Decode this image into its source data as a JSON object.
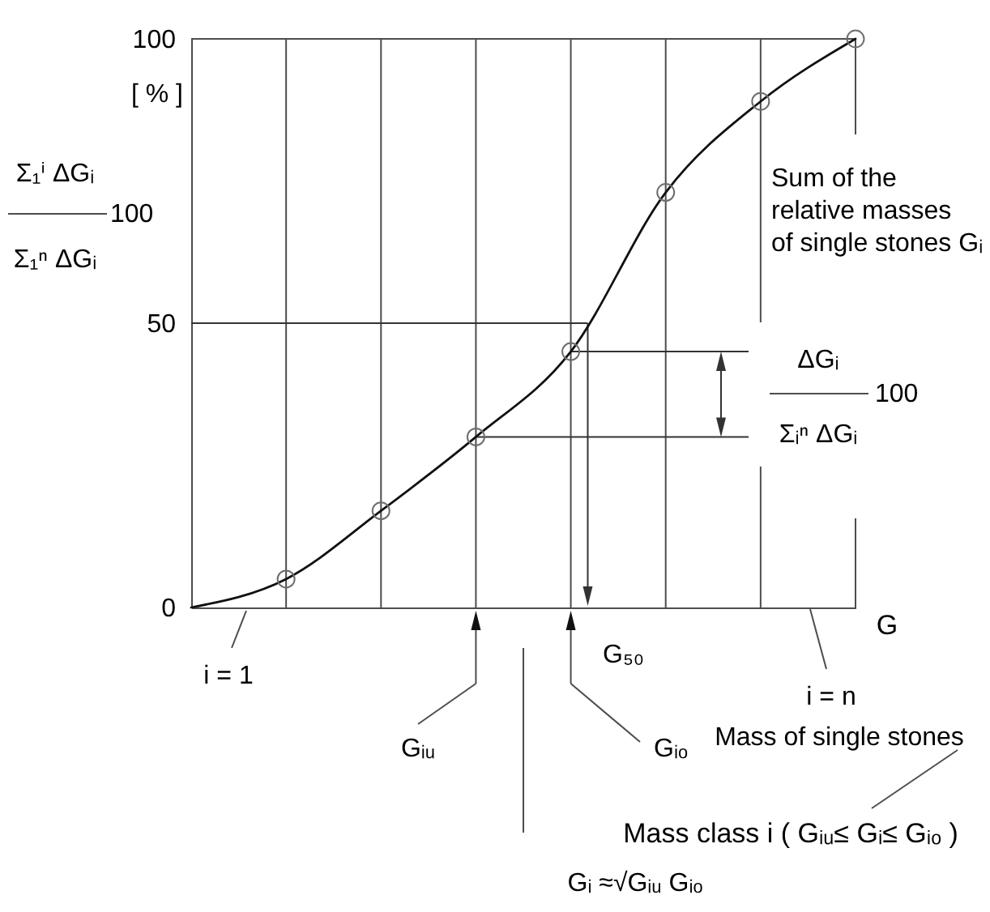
{
  "chart_data": {
    "type": "line",
    "xlabel": "G",
    "categories": [
      null,
      null,
      null,
      null,
      null,
      null,
      null,
      null
    ],
    "series": [
      {
        "type": "line",
        "color": "#111111",
        "values": [
          0,
          5,
          17,
          30,
          45,
          73,
          89,
          100
        ]
      },
      {
        "type": "scatter",
        "marker": "circle",
        "color": "#6e6e6e",
        "values": [
          null,
          5,
          17,
          30,
          45,
          73,
          89,
          100
        ]
      }
    ],
    "ylim": [
      0,
      100
    ],
    "yticks": [
      0,
      50,
      100
    ],
    "tick_labels": "y",
    "grid": "x",
    "ref_lines": [
      {
        "axis": "y",
        "value": 50,
        "color": "#333333"
      },
      {
        "axis": "y",
        "value": 45,
        "color": "#333333"
      },
      {
        "axis": "y",
        "value": 30,
        "color": "#333333"
      }
    ],
    "annotations": [
      "[ % ]",
      "Σ₁ⁱ ΔGᵢ",
      "100",
      "Σ₁ⁿ ΔGᵢ",
      "Sum of the relative masses of single stones Gᵢ",
      "ΔGᵢ",
      "100",
      "Σᵢⁿ ΔGᵢ",
      "G₅₀",
      "i = 1",
      "i = n",
      "Gᵢᵤ",
      "Gᵢₒ",
      "Gᵢ ≈√Gᵢᵤ Gᵢₒ",
      "Mass of single stones",
      "Mass class i ( Gᵢᵤ≤ Gᵢ≤ Gᵢₒ )"
    ]
  }
}
